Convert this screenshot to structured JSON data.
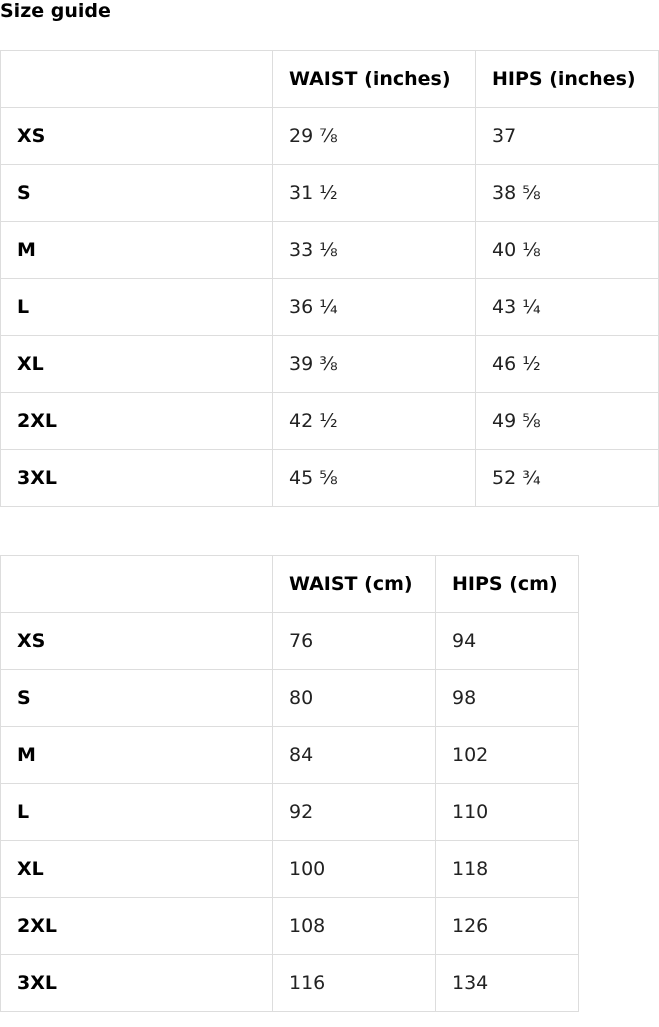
{
  "title": "Size guide",
  "tables": [
    {
      "header": [
        "WAIST (inches)",
        "HIPS (inches)"
      ],
      "rows": [
        [
          "XS",
          "29 ⅞",
          "37"
        ],
        [
          "S",
          "31 ½",
          "38 ⅝"
        ],
        [
          "M",
          "33 ⅛",
          "40 ⅛"
        ],
        [
          "L",
          "36 ¼",
          "43 ¼"
        ],
        [
          "XL",
          "39 ⅜",
          "46 ½"
        ],
        [
          "2XL",
          "42 ½",
          "49 ⅝"
        ],
        [
          "3XL",
          "45 ⅝",
          "52 ¾"
        ]
      ]
    },
    {
      "header": [
        "WAIST (cm)",
        "HIPS (cm)"
      ],
      "rows": [
        [
          "XS",
          76,
          94
        ],
        [
          "S",
          80,
          98
        ],
        [
          "M",
          84,
          102
        ],
        [
          "L",
          92,
          110
        ],
        [
          "XL",
          100,
          118
        ],
        [
          "2XL",
          108,
          126
        ],
        [
          "3XL",
          116,
          134
        ]
      ]
    }
  ]
}
